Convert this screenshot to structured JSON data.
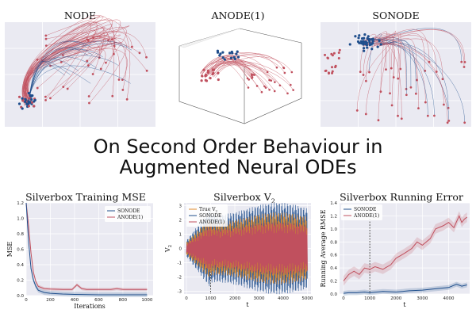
{
  "headline": {
    "line1": "On Second Order Behaviour in",
    "line2": "Augmented Neural ODEs"
  },
  "colors": {
    "blue": "#1f4e8c",
    "red": "#c0505e",
    "orange": "#e08a2c",
    "grid": "#ffffff",
    "bg": "#eaeaf2"
  },
  "top_panels": [
    {
      "title": "NODE"
    },
    {
      "title": "ANODE(1)"
    },
    {
      "title": "SONODE"
    }
  ],
  "chart_data": [
    {
      "type": "line",
      "title": "Silverbox Training MSE",
      "xlabel": "Iterations",
      "ylabel": "MSE",
      "xlim": [
        0,
        1050
      ],
      "ylim": [
        0,
        1.2
      ],
      "xticks": [
        0,
        200,
        400,
        600,
        800,
        1000
      ],
      "yticks": [
        0.0,
        0.2,
        0.4,
        0.6,
        0.8,
        1.0,
        1.2
      ],
      "legend": "top-right",
      "series": [
        {
          "name": "SONODE",
          "color": "#1f4e8c",
          "x": [
            0,
            20,
            40,
            60,
            80,
            100,
            150,
            200,
            300,
            400,
            600,
            800,
            1000
          ],
          "y": [
            1.2,
            0.7,
            0.35,
            0.2,
            0.12,
            0.07,
            0.04,
            0.03,
            0.02,
            0.015,
            0.01,
            0.01,
            0.01
          ]
        },
        {
          "name": "ANODE(1)",
          "color": "#c0505e",
          "x": [
            0,
            20,
            40,
            60,
            80,
            100,
            150,
            200,
            300,
            380,
            420,
            460,
            500,
            600,
            700,
            750,
            800,
            1000
          ],
          "y": [
            1.2,
            0.9,
            0.55,
            0.3,
            0.18,
            0.12,
            0.09,
            0.085,
            0.08,
            0.08,
            0.14,
            0.09,
            0.08,
            0.08,
            0.08,
            0.09,
            0.08,
            0.08
          ]
        }
      ]
    },
    {
      "type": "line",
      "title": "Silverbox V",
      "title_sub": "2",
      "xlabel": "t",
      "ylabel": "V",
      "ylabel_sub": "2",
      "xlim": [
        -100,
        5150
      ],
      "ylim": [
        -3.2,
        3.2
      ],
      "xticks": [
        0,
        1000,
        2000,
        3000,
        4000,
        5000
      ],
      "yticks": [
        3,
        2,
        1,
        0,
        -1,
        -2,
        -3
      ],
      "legend": "top-left",
      "dashed_x": 1000,
      "series": [
        {
          "name": "True V",
          "sub": "2",
          "color": "#e08a2c"
        },
        {
          "name": "SONODE",
          "color": "#1f4e8c"
        },
        {
          "name": "ANODE(1)",
          "color": "#c0505e"
        }
      ]
    },
    {
      "type": "line",
      "title": "Silverbox Running Error",
      "xlabel": "t",
      "ylabel": "Running Average RMSE",
      "xlim": [
        -150,
        4800
      ],
      "ylim": [
        0,
        1.4
      ],
      "xticks": [
        0,
        1000,
        2000,
        3000,
        4000
      ],
      "yticks": [
        0.0,
        0.2,
        0.4,
        0.6,
        0.8,
        1.0,
        1.2,
        1.4
      ],
      "legend": "top-left",
      "dashed_x": 1000,
      "series": [
        {
          "name": "SONODE",
          "color": "#1f4e8c",
          "x": [
            0,
            200,
            500,
            800,
            1000,
            1500,
            2000,
            2500,
            3000,
            3500,
            4000,
            4300,
            4500,
            4700
          ],
          "y": [
            0.01,
            0.02,
            0.02,
            0.03,
            0.02,
            0.04,
            0.03,
            0.05,
            0.06,
            0.08,
            0.1,
            0.15,
            0.12,
            0.14
          ]
        },
        {
          "name": "ANODE(1)",
          "color": "#c0505e",
          "x": [
            0,
            200,
            400,
            600,
            800,
            1000,
            1200,
            1500,
            1800,
            2000,
            2300,
            2600,
            2800,
            3000,
            3300,
            3500,
            3800,
            4000,
            4200,
            4400,
            4500,
            4600,
            4700
          ],
          "y": [
            0.2,
            0.3,
            0.35,
            0.3,
            0.4,
            0.38,
            0.42,
            0.38,
            0.45,
            0.55,
            0.62,
            0.7,
            0.8,
            0.75,
            0.85,
            1.0,
            1.05,
            1.1,
            1.02,
            1.2,
            1.1,
            1.15,
            1.18
          ]
        }
      ]
    }
  ]
}
